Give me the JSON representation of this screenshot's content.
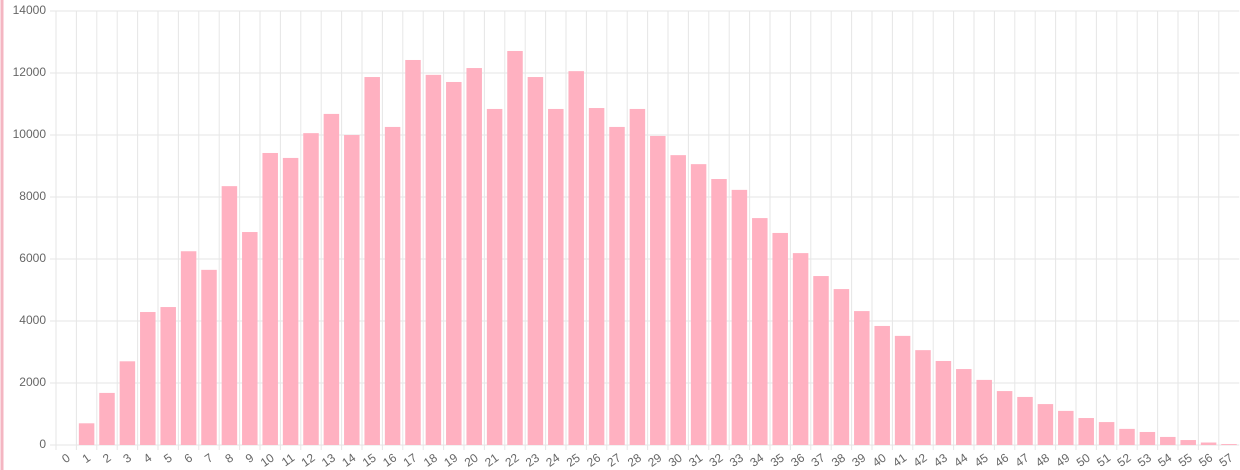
{
  "chart_data": {
    "type": "bar",
    "categories": [
      "0",
      "1",
      "2",
      "3",
      "4",
      "5",
      "6",
      "7",
      "8",
      "9",
      "10",
      "11",
      "12",
      "13",
      "14",
      "15",
      "16",
      "17",
      "18",
      "19",
      "20",
      "21",
      "22",
      "23",
      "24",
      "25",
      "26",
      "27",
      "28",
      "29",
      "30",
      "31",
      "32",
      "33",
      "34",
      "35",
      "36",
      "37",
      "38",
      "39",
      "40",
      "41",
      "42",
      "43",
      "44",
      "45",
      "46",
      "47",
      "48",
      "49",
      "50",
      "51",
      "52",
      "53",
      "54",
      "55",
      "56",
      "57"
    ],
    "values": [
      0,
      700,
      1680,
      2700,
      4290,
      4450,
      6250,
      5650,
      8350,
      6870,
      9420,
      9260,
      10060,
      10680,
      10000,
      11870,
      10260,
      12420,
      11940,
      11710,
      12160,
      10840,
      12710,
      11870,
      10840,
      12060,
      10870,
      10260,
      10840,
      9970,
      9350,
      9060,
      8580,
      8230,
      7320,
      6840,
      6190,
      5450,
      5030,
      4320,
      3840,
      3520,
      3060,
      2710,
      2450,
      2100,
      1740,
      1550,
      1320,
      1100,
      870,
      740,
      520,
      420,
      260,
      160,
      80,
      30
    ],
    "color": "#ffb1c1",
    "ylim": [
      0,
      14000
    ],
    "yticks": [
      0,
      2000,
      4000,
      6000,
      8000,
      10000,
      12000,
      14000
    ],
    "grid": true
  }
}
